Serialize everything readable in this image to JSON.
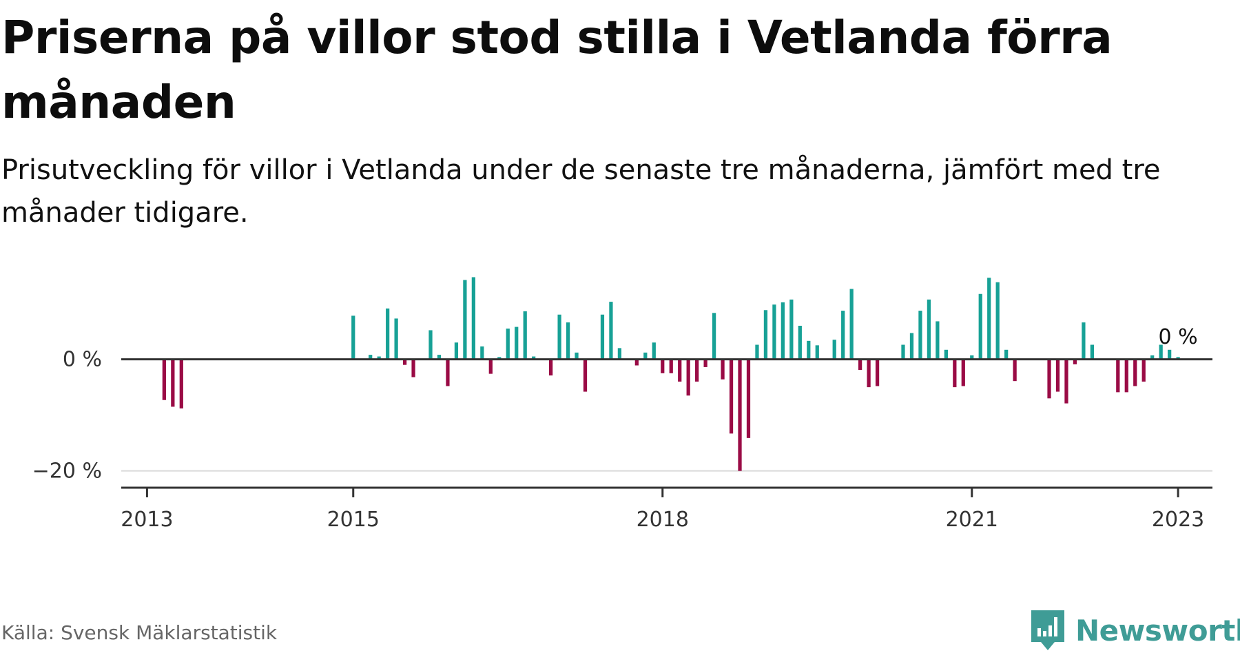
{
  "title": "Priserna på villor stod stilla i Vetlanda förra månaden",
  "subtitle": "Prisutveckling för villor i Vetlanda under de senaste tre månaderna, jämfört med tre månader tidigare.",
  "source": "Källa: Svensk Mäklarstatistik",
  "brand": {
    "name": "Newsworthy",
    "icon": "newsworthy-logo-icon",
    "color": "#3f9c96"
  },
  "colors": {
    "positive": "#17a196",
    "negative": "#9a0b45",
    "axis": "#333333",
    "grid": "#d9d9d9"
  },
  "chart_data": {
    "type": "bar",
    "title": "Priserna på villor stod stilla i Vetlanda förra månaden",
    "subtitle": "Prisutveckling för villor i Vetlanda under de senaste tre månaderna, jämfört med tre månader tidigare.",
    "xlabel": "",
    "ylabel": "",
    "ylim": [
      -23,
      15
    ],
    "xlim": [
      "2012-10",
      "2023-05"
    ],
    "yticks": [
      {
        "value": 0,
        "label": "0 %"
      },
      {
        "value": -20,
        "label": "−20 %"
      }
    ],
    "xticks": [
      {
        "date": "2013-01",
        "label": "2013"
      },
      {
        "date": "2015-01",
        "label": "2015"
      },
      {
        "date": "2018-01",
        "label": "2018"
      },
      {
        "date": "2021-01",
        "label": "2021"
      },
      {
        "date": "2023-01",
        "label": "2023"
      }
    ],
    "grid": "horizontal",
    "last_value_label": "0 %",
    "series": [
      {
        "values": [
          [
            "2013-03",
            -7.3
          ],
          [
            "2013-04",
            -8.5
          ],
          [
            "2013-05",
            -8.8
          ],
          [
            "2015-01",
            7.8
          ],
          [
            "2015-03",
            0.8
          ],
          [
            "2015-04",
            0.5
          ],
          [
            "2015-05",
            9.1
          ],
          [
            "2015-06",
            7.3
          ],
          [
            "2015-07",
            -1.0
          ],
          [
            "2015-08",
            -3.2
          ],
          [
            "2015-10",
            5.2
          ],
          [
            "2015-11",
            0.8
          ],
          [
            "2015-12",
            -4.8
          ],
          [
            "2016-01",
            3.0
          ],
          [
            "2016-02",
            14.2
          ],
          [
            "2016-03",
            14.7
          ],
          [
            "2016-04",
            2.3
          ],
          [
            "2016-05",
            -2.6
          ],
          [
            "2016-06",
            0.4
          ],
          [
            "2016-07",
            5.5
          ],
          [
            "2016-08",
            5.8
          ],
          [
            "2016-09",
            8.6
          ],
          [
            "2016-10",
            0.5
          ],
          [
            "2016-12",
            -2.9
          ],
          [
            "2017-01",
            8.0
          ],
          [
            "2017-02",
            6.6
          ],
          [
            "2017-03",
            1.2
          ],
          [
            "2017-04",
            -5.8
          ],
          [
            "2017-06",
            8.0
          ],
          [
            "2017-07",
            10.3
          ],
          [
            "2017-08",
            2.0
          ],
          [
            "2017-10",
            -1.1
          ],
          [
            "2017-11",
            1.2
          ],
          [
            "2017-12",
            3.0
          ],
          [
            "2018-01",
            -2.5
          ],
          [
            "2018-02",
            -2.5
          ],
          [
            "2018-03",
            -4.0
          ],
          [
            "2018-04",
            -6.5
          ],
          [
            "2018-05",
            -4.0
          ],
          [
            "2018-06",
            -1.4
          ],
          [
            "2018-07",
            8.3
          ],
          [
            "2018-08",
            -3.6
          ],
          [
            "2018-09",
            -13.3
          ],
          [
            "2018-10",
            -20.0
          ],
          [
            "2018-11",
            -14.1
          ],
          [
            "2018-12",
            2.6
          ],
          [
            "2019-01",
            8.8
          ],
          [
            "2019-02",
            9.8
          ],
          [
            "2019-03",
            10.2
          ],
          [
            "2019-04",
            10.7
          ],
          [
            "2019-05",
            6.0
          ],
          [
            "2019-06",
            3.3
          ],
          [
            "2019-07",
            2.5
          ],
          [
            "2019-09",
            3.5
          ],
          [
            "2019-10",
            8.7
          ],
          [
            "2019-11",
            12.6
          ],
          [
            "2019-12",
            -1.9
          ],
          [
            "2020-01",
            -5.0
          ],
          [
            "2020-02",
            -4.8
          ],
          [
            "2020-05",
            2.6
          ],
          [
            "2020-06",
            4.7
          ],
          [
            "2020-07",
            8.7
          ],
          [
            "2020-08",
            10.7
          ],
          [
            "2020-09",
            6.8
          ],
          [
            "2020-10",
            1.7
          ],
          [
            "2020-11",
            -5.0
          ],
          [
            "2020-12",
            -4.8
          ],
          [
            "2021-01",
            0.7
          ],
          [
            "2021-02",
            11.7
          ],
          [
            "2021-03",
            14.6
          ],
          [
            "2021-04",
            13.8
          ],
          [
            "2021-05",
            1.7
          ],
          [
            "2021-06",
            -3.9
          ],
          [
            "2021-10",
            -7.0
          ],
          [
            "2021-11",
            -5.8
          ],
          [
            "2021-12",
            -7.9
          ],
          [
            "2022-01",
            -0.9
          ],
          [
            "2022-02",
            6.6
          ],
          [
            "2022-03",
            2.6
          ],
          [
            "2022-06",
            -5.9
          ],
          [
            "2022-07",
            -5.9
          ],
          [
            "2022-08",
            -4.8
          ],
          [
            "2022-09",
            -4.0
          ],
          [
            "2022-10",
            0.7
          ],
          [
            "2022-11",
            2.6
          ],
          [
            "2022-12",
            1.7
          ],
          [
            "2023-01",
            0.4
          ]
        ]
      }
    ]
  }
}
